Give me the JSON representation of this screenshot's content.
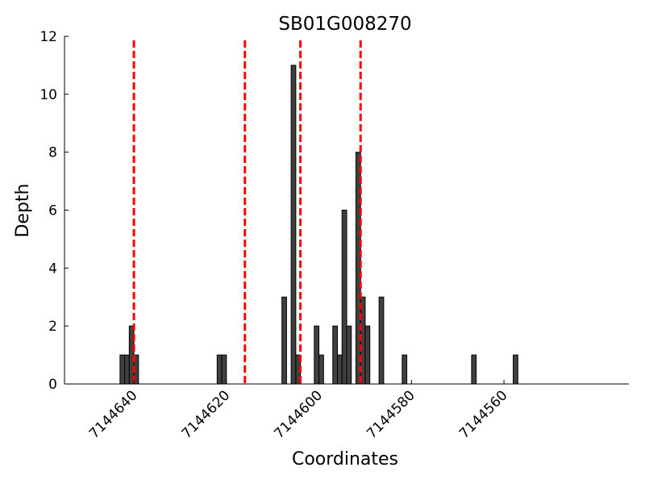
{
  "chart_data": {
    "type": "bar",
    "title": "SB01G008270",
    "xlabel": "Coordinates",
    "ylabel": "Depth",
    "xlim": [
      7144655,
      7144533
    ],
    "ylim": [
      0,
      12
    ],
    "x_reversed": true,
    "x_ticks": [
      7144640,
      7144620,
      7144600,
      7144580,
      7144560
    ],
    "y_ticks": [
      0,
      2,
      4,
      6,
      8,
      10,
      12
    ],
    "bar_width": 1,
    "bar_color": "#404040",
    "bars": [
      {
        "x": 7144642,
        "value": 1
      },
      {
        "x": 7144641,
        "value": 1
      },
      {
        "x": 7144640,
        "value": 2
      },
      {
        "x": 7144639,
        "value": 1
      },
      {
        "x": 7144621,
        "value": 1
      },
      {
        "x": 7144620,
        "value": 1
      },
      {
        "x": 7144607,
        "value": 3
      },
      {
        "x": 7144605,
        "value": 11
      },
      {
        "x": 7144604,
        "value": 1
      },
      {
        "x": 7144600,
        "value": 2
      },
      {
        "x": 7144599,
        "value": 1
      },
      {
        "x": 7144596,
        "value": 2
      },
      {
        "x": 7144595,
        "value": 1
      },
      {
        "x": 7144594,
        "value": 6
      },
      {
        "x": 7144593,
        "value": 2
      },
      {
        "x": 7144591,
        "value": 8
      },
      {
        "x": 7144590,
        "value": 3
      },
      {
        "x": 7144589,
        "value": 2
      },
      {
        "x": 7144586,
        "value": 3
      },
      {
        "x": 7144581,
        "value": 1
      },
      {
        "x": 7144566,
        "value": 1
      },
      {
        "x": 7144557,
        "value": 1
      }
    ],
    "vlines": [
      {
        "x": 7144640,
        "color": "#ff0000",
        "style": "dashed"
      },
      {
        "x": 7144616,
        "color": "#ff0000",
        "style": "dashed"
      },
      {
        "x": 7144604,
        "color": "#ff0000",
        "style": "dashed"
      },
      {
        "x": 7144591,
        "color": "#ff0000",
        "style": "dashed"
      }
    ],
    "grid": false,
    "legend": "none"
  }
}
